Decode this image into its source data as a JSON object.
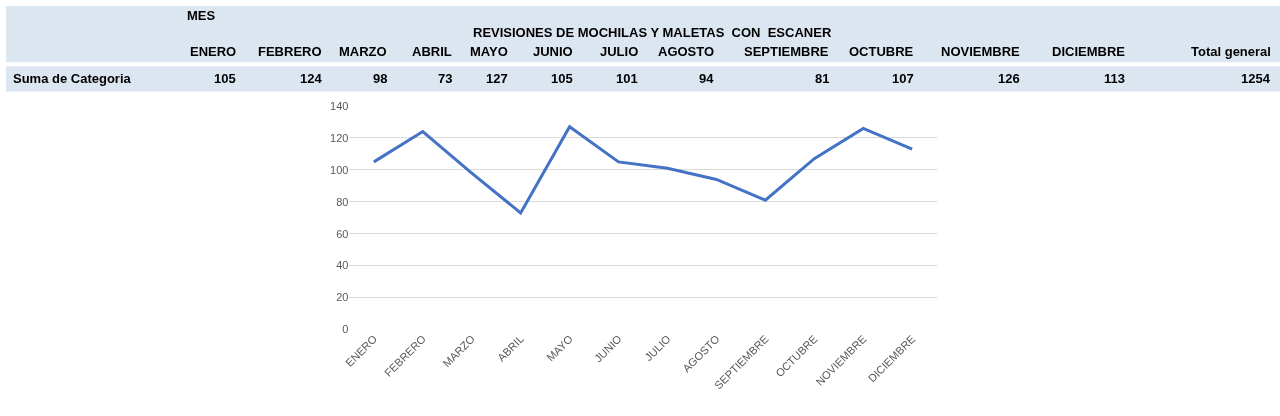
{
  "chart_data": [
    {
      "type": "other",
      "title": "REVISIONES DE MOCHILAS Y MALETAS  CON  ESCANER",
      "annotations": [
        "MES",
        "ENERO",
        "FEBRERO",
        "MARZO",
        "ABRIL",
        "MAYO",
        "JUNIO",
        "JULIO",
        "AGOSTO",
        "SEPTIEMBRE",
        "OCTUBRE",
        "NOVIEMBRE",
        "DICIEMBRE",
        "Total general",
        "Suma de Categoria",
        "105",
        "124",
        "98",
        "73",
        "127",
        "105",
        "101",
        "94",
        "81",
        "107",
        "126",
        "113",
        "1254"
      ]
    },
    {
      "type": "line",
      "categories": [
        "ENERO",
        "FEBRERO",
        "MARZO",
        "ABRIL",
        "MAYO",
        "JUNIO",
        "JULIO",
        "AGOSTO",
        "SEPTIEMBRE",
        "OCTUBRE",
        "NOVIEMBRE",
        "DICIEMBRE"
      ],
      "series": [
        {
          "color": "#4472c4",
          "values": [
            105,
            124,
            98,
            73,
            127,
            105,
            101,
            94,
            81,
            107,
            126,
            113
          ]
        }
      ],
      "ylim": [
        0,
        140
      ],
      "yticks": [
        0,
        20,
        40,
        60,
        80,
        100,
        120,
        140
      ],
      "grid": "y",
      "marker": "none",
      "line_style": "solid"
    }
  ]
}
